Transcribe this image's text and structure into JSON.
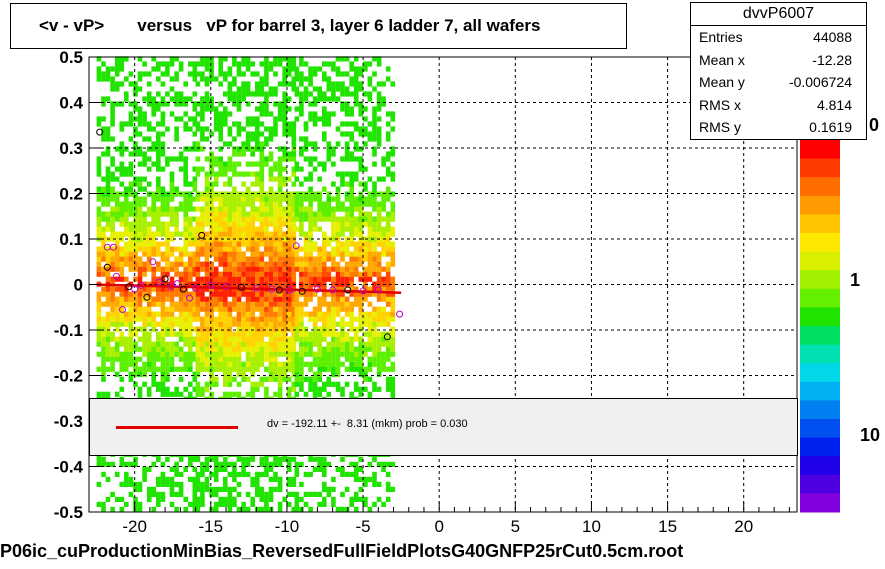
{
  "title": "<v - vP>       versus   vP for barrel 3, layer 6 ladder 7, all wafers",
  "stats": {
    "name": "dvvP6007",
    "rows": [
      {
        "label": "Entries",
        "value": "44088"
      },
      {
        "label": "Mean x",
        "value": "-12.28"
      },
      {
        "label": "Mean y",
        "value": "-0.006724"
      },
      {
        "label": "RMS x",
        "value": "4.814"
      },
      {
        "label": "RMS y",
        "value": "0.1619"
      }
    ]
  },
  "legend": {
    "text": "dv = -192.11 +-  8.31 (mkm) prob = 0.030",
    "color": "#e00000"
  },
  "footer": "P06ic_cuProductionMinBias_ReversedFullFieldPlotsG40GNFP25rCut0.5cm.root",
  "chart_data": {
    "type": "heatmap",
    "xlim": [
      -23,
      23.5
    ],
    "ylim": [
      -0.5,
      0.5
    ],
    "x_ticks": [
      "-20",
      "-15",
      "-10",
      "-5",
      "0",
      "5",
      "10",
      "15",
      "20"
    ],
    "y_ticks": [
      "0.5",
      "0.4",
      "0.3",
      "0.2",
      "0.1",
      "0",
      "-0.1",
      "-0.2",
      "-0.3",
      "-0.4",
      "-0.5"
    ],
    "grid": true,
    "z_scale": "log",
    "colorbar_labels": [
      "1",
      "10"
    ],
    "colorbar_partial_labels": [
      "0",
      "10"
    ],
    "occupied_x_ranges": [
      [
        -22.5,
        -16
      ],
      [
        -16,
        -9.5
      ],
      [
        -9.5,
        -3
      ]
    ],
    "fit_line": {
      "x": [
        -22.5,
        -2.5
      ],
      "y": [
        -0.0002,
        -0.018
      ],
      "color": "#e00000"
    },
    "profile_points": [
      {
        "x": -22.3,
        "y": 0.335
      },
      {
        "x": -21.8,
        "y": 0.082
      },
      {
        "x": -21.4,
        "y": 0.082
      },
      {
        "x": -21.8,
        "y": 0.038
      },
      {
        "x": -21.2,
        "y": 0.018
      },
      {
        "x": -20.8,
        "y": -0.055
      },
      {
        "x": -20.4,
        "y": -0.005
      },
      {
        "x": -20.0,
        "y": -0.01
      },
      {
        "x": -19.6,
        "y": -0.002
      },
      {
        "x": -19.2,
        "y": -0.028
      },
      {
        "x": -18.8,
        "y": 0.05
      },
      {
        "x": -18.4,
        "y": 0.005
      },
      {
        "x": -18.0,
        "y": 0.012
      },
      {
        "x": -17.6,
        "y": -0.004
      },
      {
        "x": -17.2,
        "y": 0.002
      },
      {
        "x": -16.8,
        "y": -0.01
      },
      {
        "x": -16.4,
        "y": -0.03
      },
      {
        "x": -16.0,
        "y": -0.008
      },
      {
        "x": -15.6,
        "y": 0.108
      },
      {
        "x": -15.0,
        "y": -0.002
      },
      {
        "x": -14.0,
        "y": -0.004
      },
      {
        "x": -13.0,
        "y": -0.006
      },
      {
        "x": -12.0,
        "y": -0.008
      },
      {
        "x": -11.0,
        "y": -0.01
      },
      {
        "x": -10.5,
        "y": -0.012
      },
      {
        "x": -9.8,
        "y": -0.012
      },
      {
        "x": -9.4,
        "y": 0.085
      },
      {
        "x": -9.0,
        "y": -0.015
      },
      {
        "x": -8.0,
        "y": -0.01
      },
      {
        "x": -7.0,
        "y": -0.012
      },
      {
        "x": -6.0,
        "y": -0.012
      },
      {
        "x": -5.0,
        "y": -0.014
      },
      {
        "x": -4.0,
        "y": -0.012
      },
      {
        "x": -3.4,
        "y": -0.115
      },
      {
        "x": -2.6,
        "y": -0.065
      }
    ]
  }
}
